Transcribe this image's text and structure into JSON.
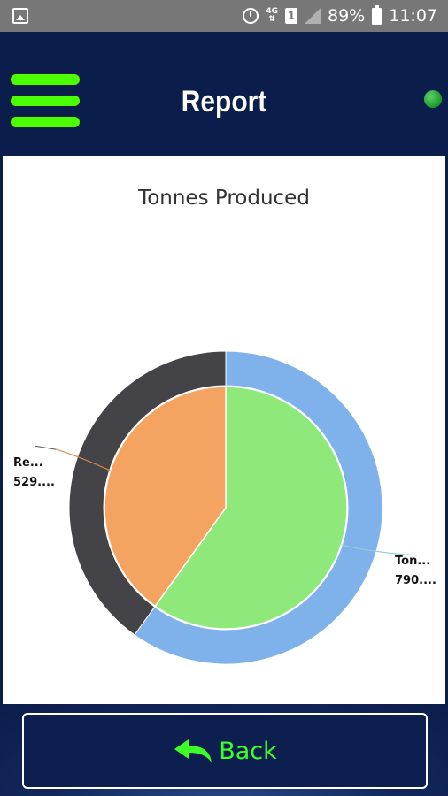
{
  "status_bar": {
    "battery": "89%",
    "time": "11:07",
    "network": "4G",
    "sim": "1",
    "icons": [
      "gallery-icon",
      "alarm-icon",
      "network-icon",
      "sim-icon",
      "signal-icon",
      "battery-icon"
    ]
  },
  "header": {
    "title": "Report",
    "menu_icon": "hamburger-menu-icon",
    "status_indicator_color": "#1a9a2c"
  },
  "chart": {
    "title": "Tonnes Produced",
    "labels": {
      "left_name": "Re...",
      "left_value": "529....",
      "right_name": "Ton...",
      "right_value": "790...."
    }
  },
  "chart_data": {
    "type": "pie",
    "title": "Tonnes Produced",
    "rings": [
      {
        "ring": "inner",
        "slices": [
          {
            "label": "Ton...",
            "value": 790,
            "color": "#8fe87a"
          },
          {
            "label": "Re...",
            "value": 529,
            "color": "#f4a460"
          }
        ]
      },
      {
        "ring": "outer",
        "slices": [
          {
            "value": 790,
            "color": "#7fb2ea"
          },
          {
            "value": 529,
            "color": "#444448"
          }
        ]
      }
    ]
  },
  "footer": {
    "back_label": "Back",
    "back_icon": "reply-arrow-icon"
  },
  "colors": {
    "header_bg": "#0b1d4a",
    "accent_green": "#4cff00",
    "back_text": "#3cff2a"
  }
}
